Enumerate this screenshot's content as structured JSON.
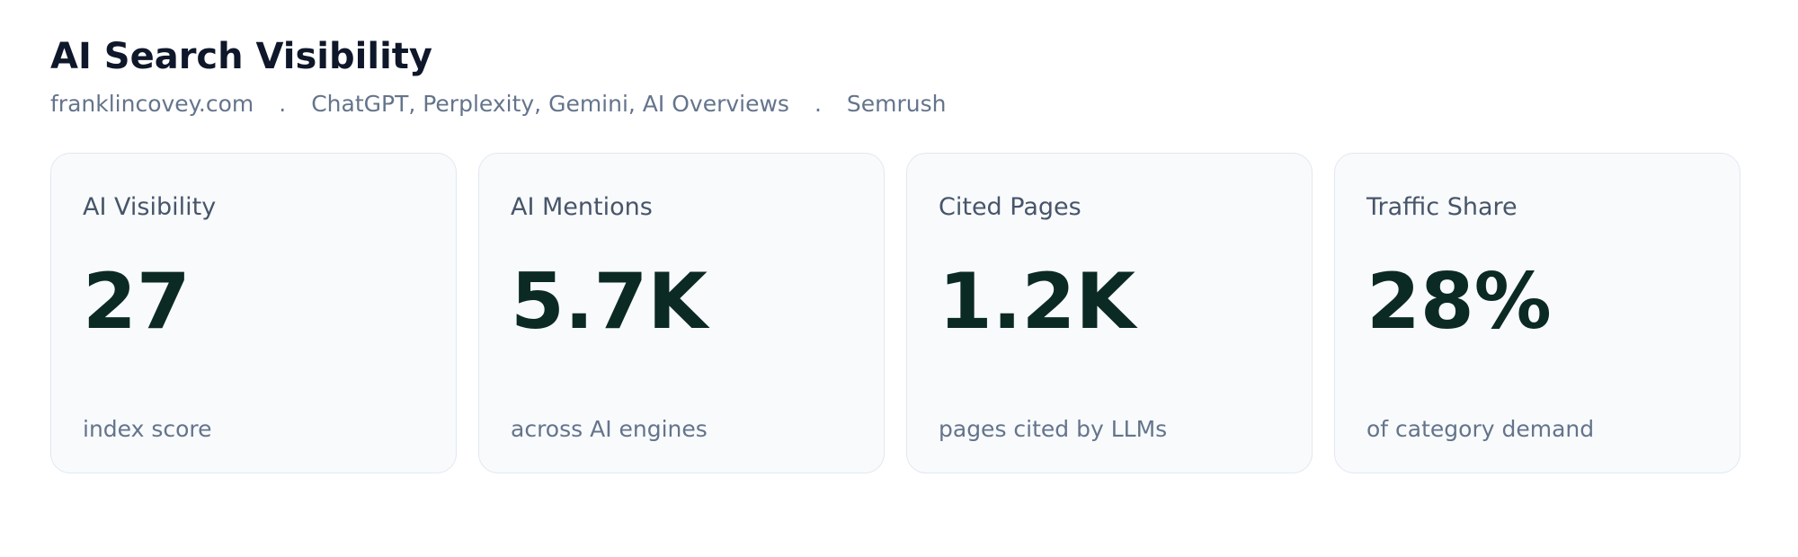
{
  "header": {
    "title": "AI Search Visibility",
    "subtitle": [
      "franklincovey.com",
      "ChatGPT, Perplexity, Gemini, AI Overviews",
      "Semrush"
    ],
    "separator": "."
  },
  "cards": [
    {
      "label": "AI Visibility",
      "value": "27",
      "note": "index score"
    },
    {
      "label": "AI Mentions",
      "value": "5.7K",
      "note": "across AI engines"
    },
    {
      "label": "Cited Pages",
      "value": "1.2K",
      "note": "pages cited by LLMs"
    },
    {
      "label": "Traffic Share",
      "value": "28%",
      "note": "of category demand"
    }
  ]
}
